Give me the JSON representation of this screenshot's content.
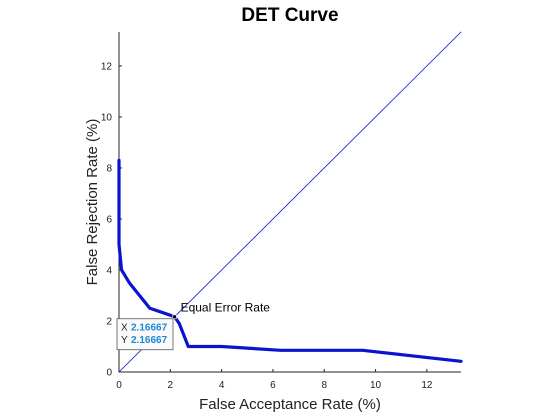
{
  "chart_data": {
    "type": "line",
    "title": "DET Curve",
    "xlabel": "False Acceptance Rate (%)",
    "ylabel": "False Rejection Rate (%)",
    "xlim": [
      0,
      13.33
    ],
    "ylim": [
      0,
      13.33
    ],
    "xticks": [
      "0",
      "2",
      "4",
      "6",
      "8",
      "10",
      "12"
    ],
    "yticks": [
      "0",
      "2",
      "4",
      "6",
      "8",
      "10",
      "12"
    ],
    "grid": false,
    "series": [
      {
        "type": "line",
        "color": "#0a14d0",
        "x": [
          0,
          0,
          0.1,
          0.4,
          0.8,
          1.2,
          1.7,
          2.16667,
          2.35,
          2.7,
          4.0,
          6.3,
          9.5,
          13.33
        ],
        "y": [
          8.3,
          5.0,
          4.0,
          3.5,
          3.0,
          2.5,
          2.33,
          2.16667,
          1.9,
          1.0,
          1.0,
          0.85,
          0.85,
          0.42
        ]
      },
      {
        "type": "reference-line",
        "color": "#0a14d0",
        "x": [
          0,
          13.33
        ],
        "y": [
          0,
          13.33
        ]
      }
    ],
    "annotations": [
      {
        "text": "Equal Error Rate",
        "x": 2.16667,
        "y": 2.16667
      }
    ],
    "datatip": {
      "x_key": "X",
      "x_value": "2.16667",
      "y_key": "Y",
      "y_value": "2.16667",
      "x": 2.16667,
      "y": 2.16667
    }
  }
}
